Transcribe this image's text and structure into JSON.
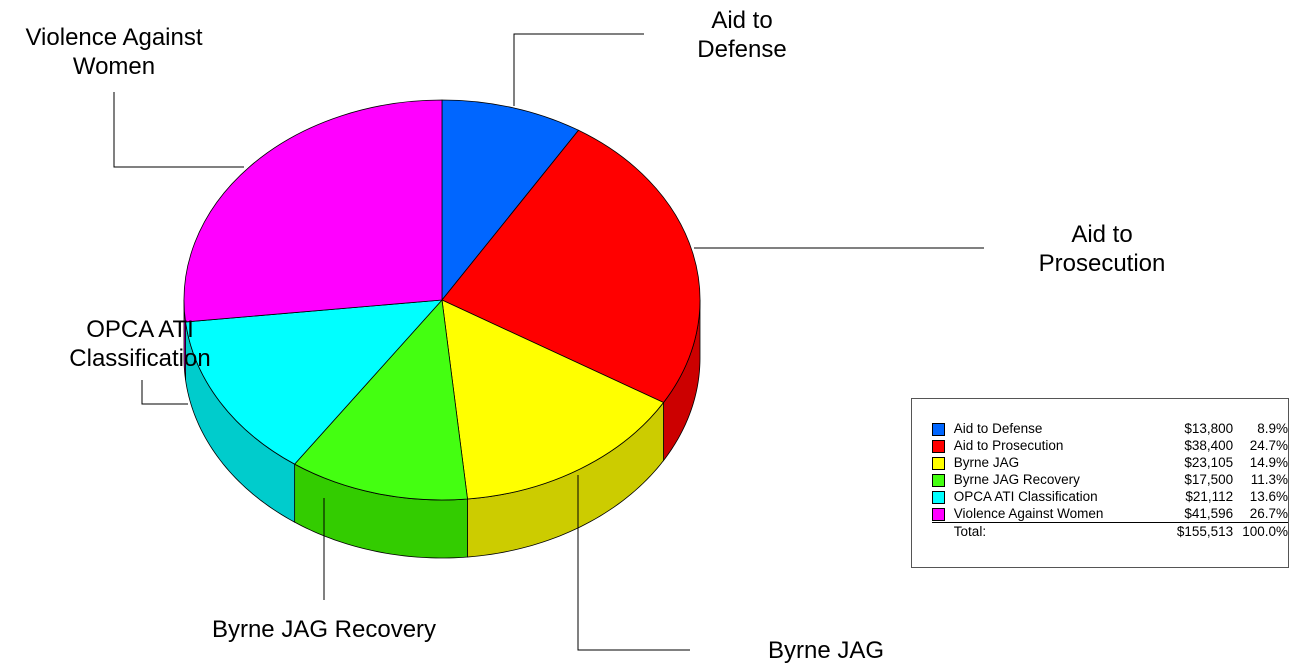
{
  "chart_data": {
    "type": "pie",
    "style": "3d",
    "slices": [
      {
        "label": "Aid to Defense",
        "callout": [
          "Aid to",
          "Defense"
        ],
        "value": 13800,
        "value_text": "$13,800",
        "percent_text": "8.9%",
        "color": "#0066ff",
        "side_color": "#0052cc"
      },
      {
        "label": "Aid to Prosecution",
        "callout": [
          "Aid to",
          "Prosecution"
        ],
        "value": 38400,
        "value_text": "$38,400",
        "percent_text": "24.7%",
        "color": "#ff0000",
        "side_color": "#cc0000"
      },
      {
        "label": "Byrne JAG",
        "callout": [
          "Byrne JAG"
        ],
        "value": 23105,
        "value_text": "$23,105",
        "percent_text": "14.9%",
        "color": "#ffff00",
        "side_color": "#cccc00"
      },
      {
        "label": "Byrne JAG Recovery",
        "callout": [
          "Byrne JAG Recovery"
        ],
        "value": 17500,
        "value_text": "$17,500",
        "percent_text": "11.3%",
        "color": "#44ff11",
        "side_color": "#33cc00"
      },
      {
        "label": "OPCA ATI Classification",
        "callout": [
          "OPCA ATI",
          "Classification"
        ],
        "value": 21112,
        "value_text": "$21,112",
        "percent_text": "13.6%",
        "color": "#00ffff",
        "side_color": "#00cccc"
      },
      {
        "label": "Violence Against Women",
        "callout": [
          "Violence Against",
          "Women"
        ],
        "value": 41596,
        "value_text": "$41,596",
        "percent_text": "26.7%",
        "color": "#ff00ff",
        "side_color": "#cc00cc"
      }
    ],
    "legend_placement": "bottom-right",
    "total": {
      "label": "Total:",
      "value": 155513,
      "value_text": "$155,513",
      "percent_text": "100.0%"
    }
  }
}
